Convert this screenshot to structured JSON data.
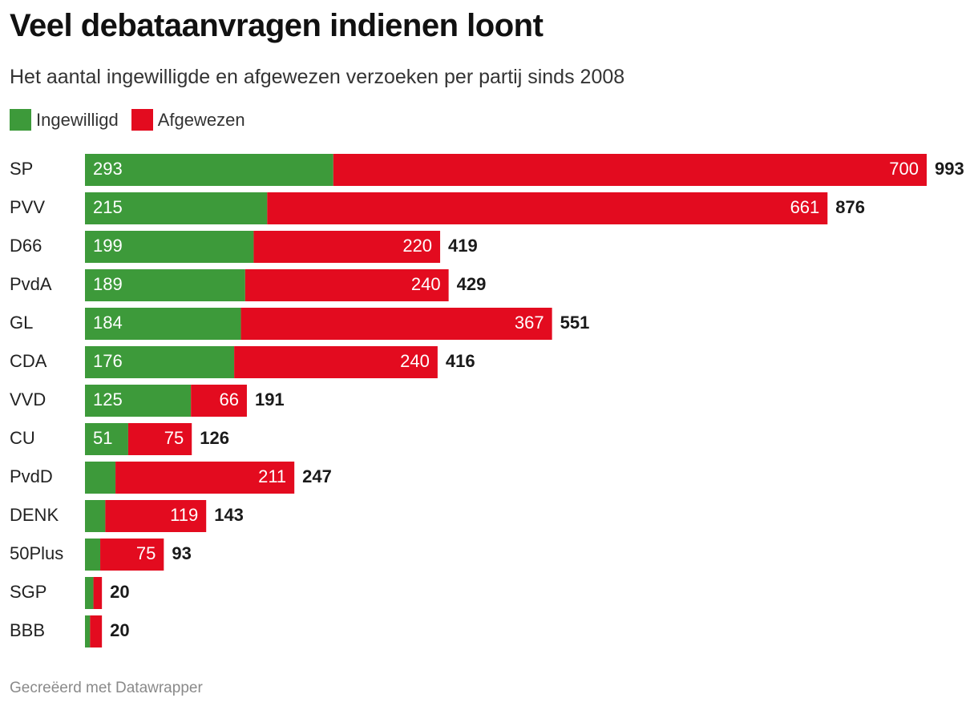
{
  "header": {
    "title": "Veel debataanvragen indienen loont",
    "subtitle": "Het aantal ingewilligde en afgewezen verzoeken per partij sinds 2008"
  },
  "footer": {
    "credit": "Gecreëerd met Datawrapper"
  },
  "chart_data": {
    "type": "bar",
    "orientation": "horizontal",
    "stacked": true,
    "title": "Veel debataanvragen indienen loont",
    "subtitle": "Het aantal ingewilligde en afgewezen verzoeken per partij sinds 2008",
    "legend_position": "top-left",
    "grid": false,
    "xlim": [
      0,
      993
    ],
    "categories": [
      "SP",
      "PVV",
      "D66",
      "PvdA",
      "GL",
      "CDA",
      "VVD",
      "CU",
      "PvdD",
      "DENK",
      "50Plus",
      "SGP",
      "BBB"
    ],
    "series": [
      {
        "name": "Ingewilligd",
        "color": "#3d9a3a",
        "values": [
          293,
          215,
          199,
          189,
          184,
          176,
          125,
          51,
          36,
          24,
          18,
          10,
          6
        ],
        "labels": [
          "293",
          "215",
          "199",
          "189",
          "184",
          "176",
          "125",
          "51",
          "",
          "",
          "",
          "",
          ""
        ]
      },
      {
        "name": "Afgewezen",
        "color": "#e30b1f",
        "values": [
          700,
          661,
          220,
          240,
          367,
          240,
          66,
          75,
          211,
          119,
          75,
          10,
          14
        ],
        "labels": [
          "700",
          "661",
          "220",
          "240",
          "367",
          "240",
          "66",
          "75",
          "211",
          "119",
          "75",
          "",
          ""
        ]
      }
    ],
    "totals": [
      "993",
      "876",
      "419",
      "429",
      "551",
      "416",
      "191",
      "126",
      "247",
      "143",
      "93",
      "20",
      "20"
    ]
  }
}
